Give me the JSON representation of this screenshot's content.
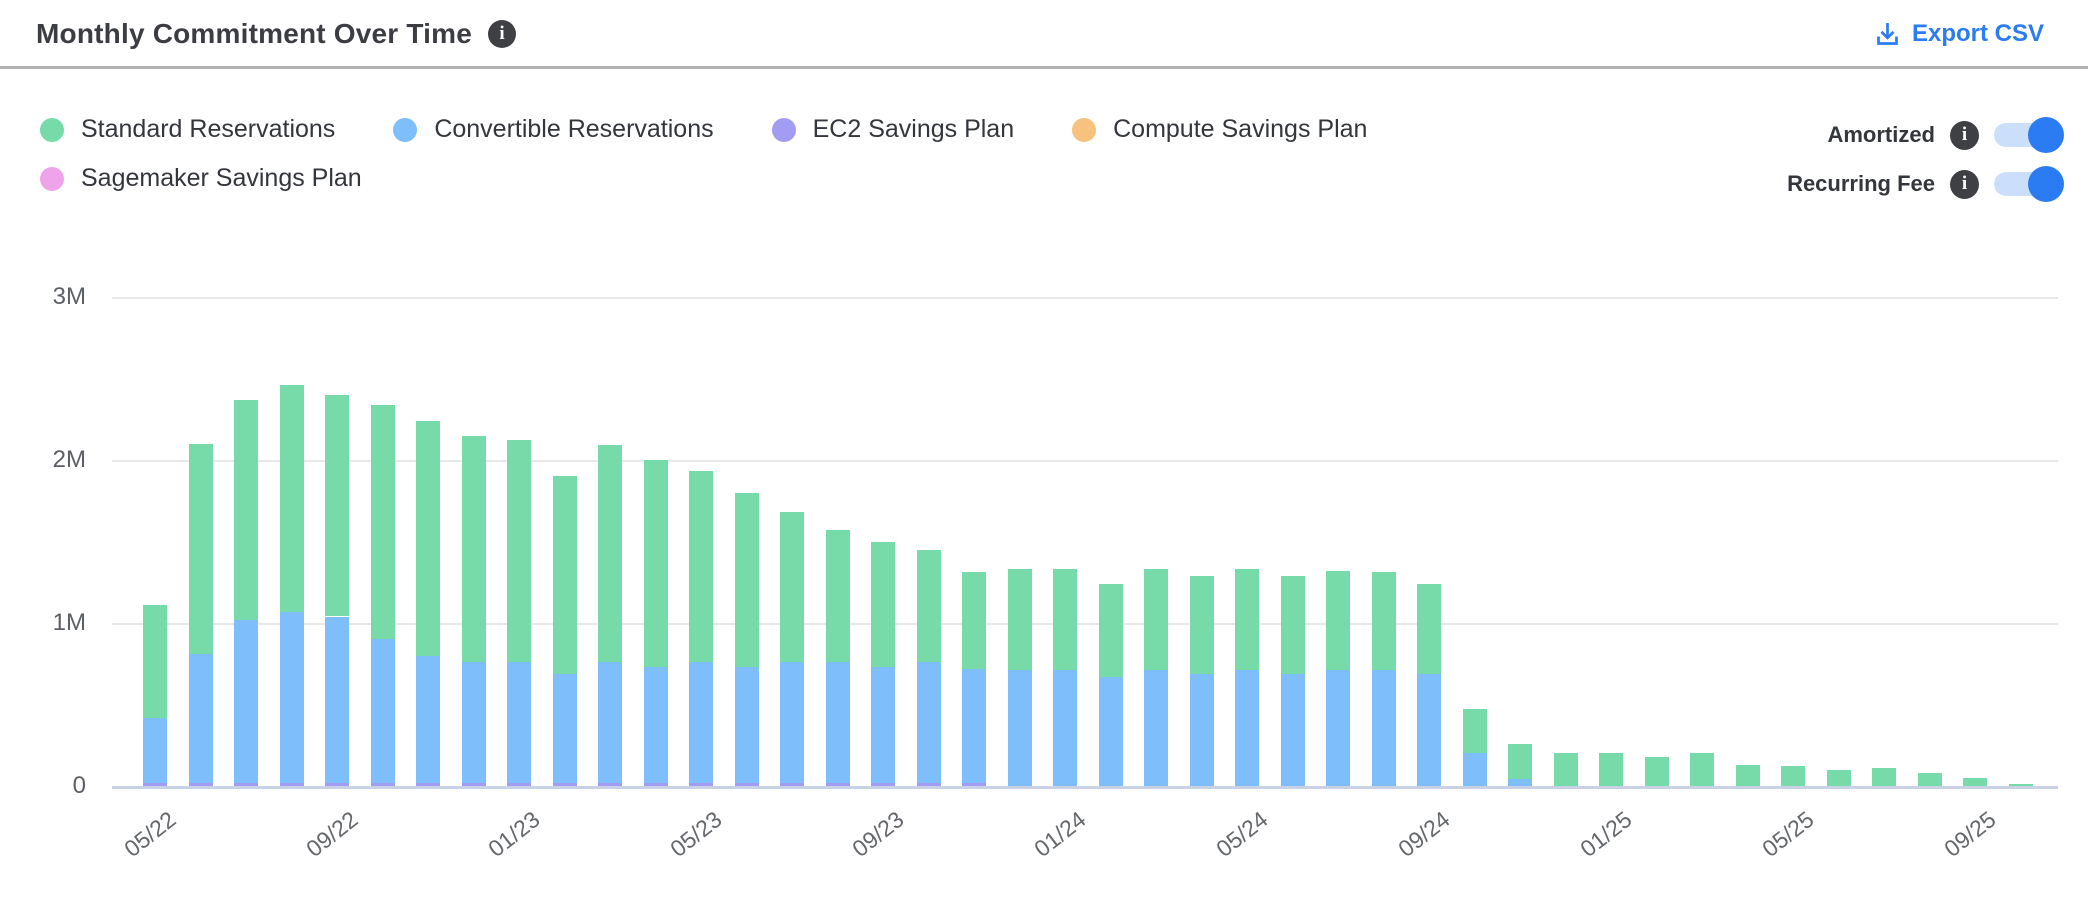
{
  "header": {
    "title": "Monthly Commitment Over Time",
    "export_label": "Export CSV"
  },
  "icons": {
    "info_glyph": "i"
  },
  "legend": {
    "items": [
      {
        "label": "Standard Reservations",
        "color": "#76dba8"
      },
      {
        "label": "Convertible Reservations",
        "color": "#7dbefb"
      },
      {
        "label": "EC2 Savings Plan",
        "color": "#a29df2"
      },
      {
        "label": "Compute Savings Plan",
        "color": "#f6c27d"
      },
      {
        "label": "Sagemaker Savings Plan",
        "color": "#efa3ea"
      }
    ]
  },
  "toggles": [
    {
      "label": "Amortized",
      "state": "on"
    },
    {
      "label": "Recurring Fee",
      "state": "on"
    }
  ],
  "colors": {
    "accent_blue": "#2b7bf3",
    "title_text": "#3b3d42",
    "gridline": "#e8e8ea",
    "baseline": "#c9d1e6"
  },
  "chart_data": {
    "type": "bar",
    "stacked": true,
    "title": "Monthly Commitment Over Time",
    "xlabel": "",
    "ylabel": "",
    "ylim": [
      0,
      3000000
    ],
    "grid": "horizontal",
    "legend_position": "top-left",
    "y_ticks": [
      {
        "value": 0,
        "label": "0"
      },
      {
        "value": 1,
        "label": "1M"
      },
      {
        "value": 2,
        "label": "2M"
      },
      {
        "value": 3,
        "label": "3M"
      }
    ],
    "x_tick_every": 4,
    "months": [
      "05/22",
      "06/22",
      "07/22",
      "08/22",
      "09/22",
      "10/22",
      "11/22",
      "12/22",
      "01/23",
      "02/23",
      "03/23",
      "04/23",
      "05/23",
      "06/23",
      "07/23",
      "08/23",
      "09/23",
      "10/23",
      "11/23",
      "12/23",
      "01/24",
      "02/24",
      "03/24",
      "04/24",
      "05/24",
      "06/24",
      "07/24",
      "08/24",
      "09/24",
      "10/24",
      "11/24",
      "12/24",
      "01/25",
      "02/25",
      "03/25",
      "04/25",
      "05/25",
      "06/25",
      "07/25",
      "08/25",
      "09/25",
      "10/25"
    ],
    "value_unit": "M",
    "series_stack_order_bottom_to_top": [
      {
        "name": "EC2 Savings Plan",
        "color": "#a29df2",
        "values": [
          0.02,
          0.02,
          0.02,
          0.02,
          0.02,
          0.02,
          0.02,
          0.02,
          0.02,
          0.02,
          0.02,
          0.02,
          0.02,
          0.02,
          0.02,
          0.02,
          0.02,
          0.02,
          0.02,
          0,
          0,
          0,
          0,
          0,
          0,
          0,
          0,
          0,
          0,
          0,
          0,
          0,
          0,
          0,
          0,
          0,
          0,
          0,
          0,
          0,
          0,
          0
        ]
      },
      {
        "name": "Convertible Reservations",
        "color": "#7dbefb",
        "values": [
          0.4,
          0.79,
          1.0,
          1.05,
          1.02,
          0.88,
          0.78,
          0.74,
          0.74,
          0.67,
          0.74,
          0.71,
          0.74,
          0.71,
          0.74,
          0.74,
          0.71,
          0.74,
          0.7,
          0.71,
          0.71,
          0.67,
          0.71,
          0.69,
          0.71,
          0.69,
          0.71,
          0.71,
          0.69,
          0.2,
          0.04,
          0,
          0,
          0,
          0,
          0,
          0,
          0,
          0,
          0,
          0,
          0
        ]
      },
      {
        "name": "Standard Reservations",
        "color": "#76dba8",
        "values": [
          0.69,
          1.29,
          1.35,
          1.39,
          1.36,
          1.44,
          1.44,
          1.39,
          1.36,
          1.21,
          1.33,
          1.27,
          1.17,
          1.07,
          0.92,
          0.81,
          0.77,
          0.69,
          0.59,
          0.62,
          0.62,
          0.57,
          0.62,
          0.6,
          0.62,
          0.6,
          0.61,
          0.6,
          0.55,
          0.27,
          0.22,
          0.2,
          0.2,
          0.18,
          0.2,
          0.13,
          0.12,
          0.1,
          0.11,
          0.08,
          0.05,
          0.01
        ]
      },
      {
        "name": "Compute Savings Plan",
        "color": "#f6c27d",
        "values": [
          0,
          0,
          0,
          0,
          0,
          0,
          0,
          0,
          0,
          0,
          0,
          0,
          0,
          0,
          0,
          0,
          0,
          0,
          0,
          0,
          0,
          0,
          0,
          0,
          0,
          0,
          0,
          0,
          0,
          0,
          0,
          0,
          0,
          0,
          0,
          0,
          0,
          0,
          0,
          0,
          0,
          0
        ]
      },
      {
        "name": "Sagemaker Savings Plan",
        "color": "#efa3ea",
        "values": [
          0,
          0,
          0,
          0,
          0,
          0,
          0,
          0,
          0,
          0,
          0,
          0,
          0,
          0,
          0,
          0,
          0,
          0,
          0,
          0,
          0,
          0,
          0,
          0,
          0,
          0,
          0,
          0,
          0,
          0,
          0,
          0,
          0,
          0,
          0,
          0,
          0,
          0,
          0,
          0,
          0,
          0
        ]
      }
    ]
  }
}
